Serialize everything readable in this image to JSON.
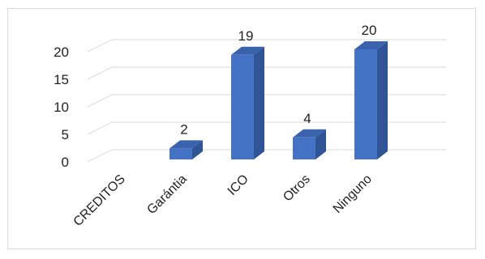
{
  "chart_data": {
    "type": "bar",
    "style": "3d-column",
    "categories": [
      "CREDITOS",
      "Garántia",
      "ICO",
      "Otros",
      "Ninguno"
    ],
    "values": [
      0,
      2,
      19,
      4,
      20
    ],
    "data_labels": [
      "",
      "2",
      "19",
      "4",
      "20"
    ],
    "yticks": [
      "0",
      "5",
      "10",
      "15",
      "20"
    ],
    "ylim": [
      0,
      20
    ],
    "grid": true,
    "legend": "none",
    "colors": {
      "bar_front": "#4472c4",
      "bar_side": "#2f5597",
      "bar_top": "#3a62ad",
      "grid": "#d9d9d9",
      "frame": "#d9d9d9"
    }
  }
}
